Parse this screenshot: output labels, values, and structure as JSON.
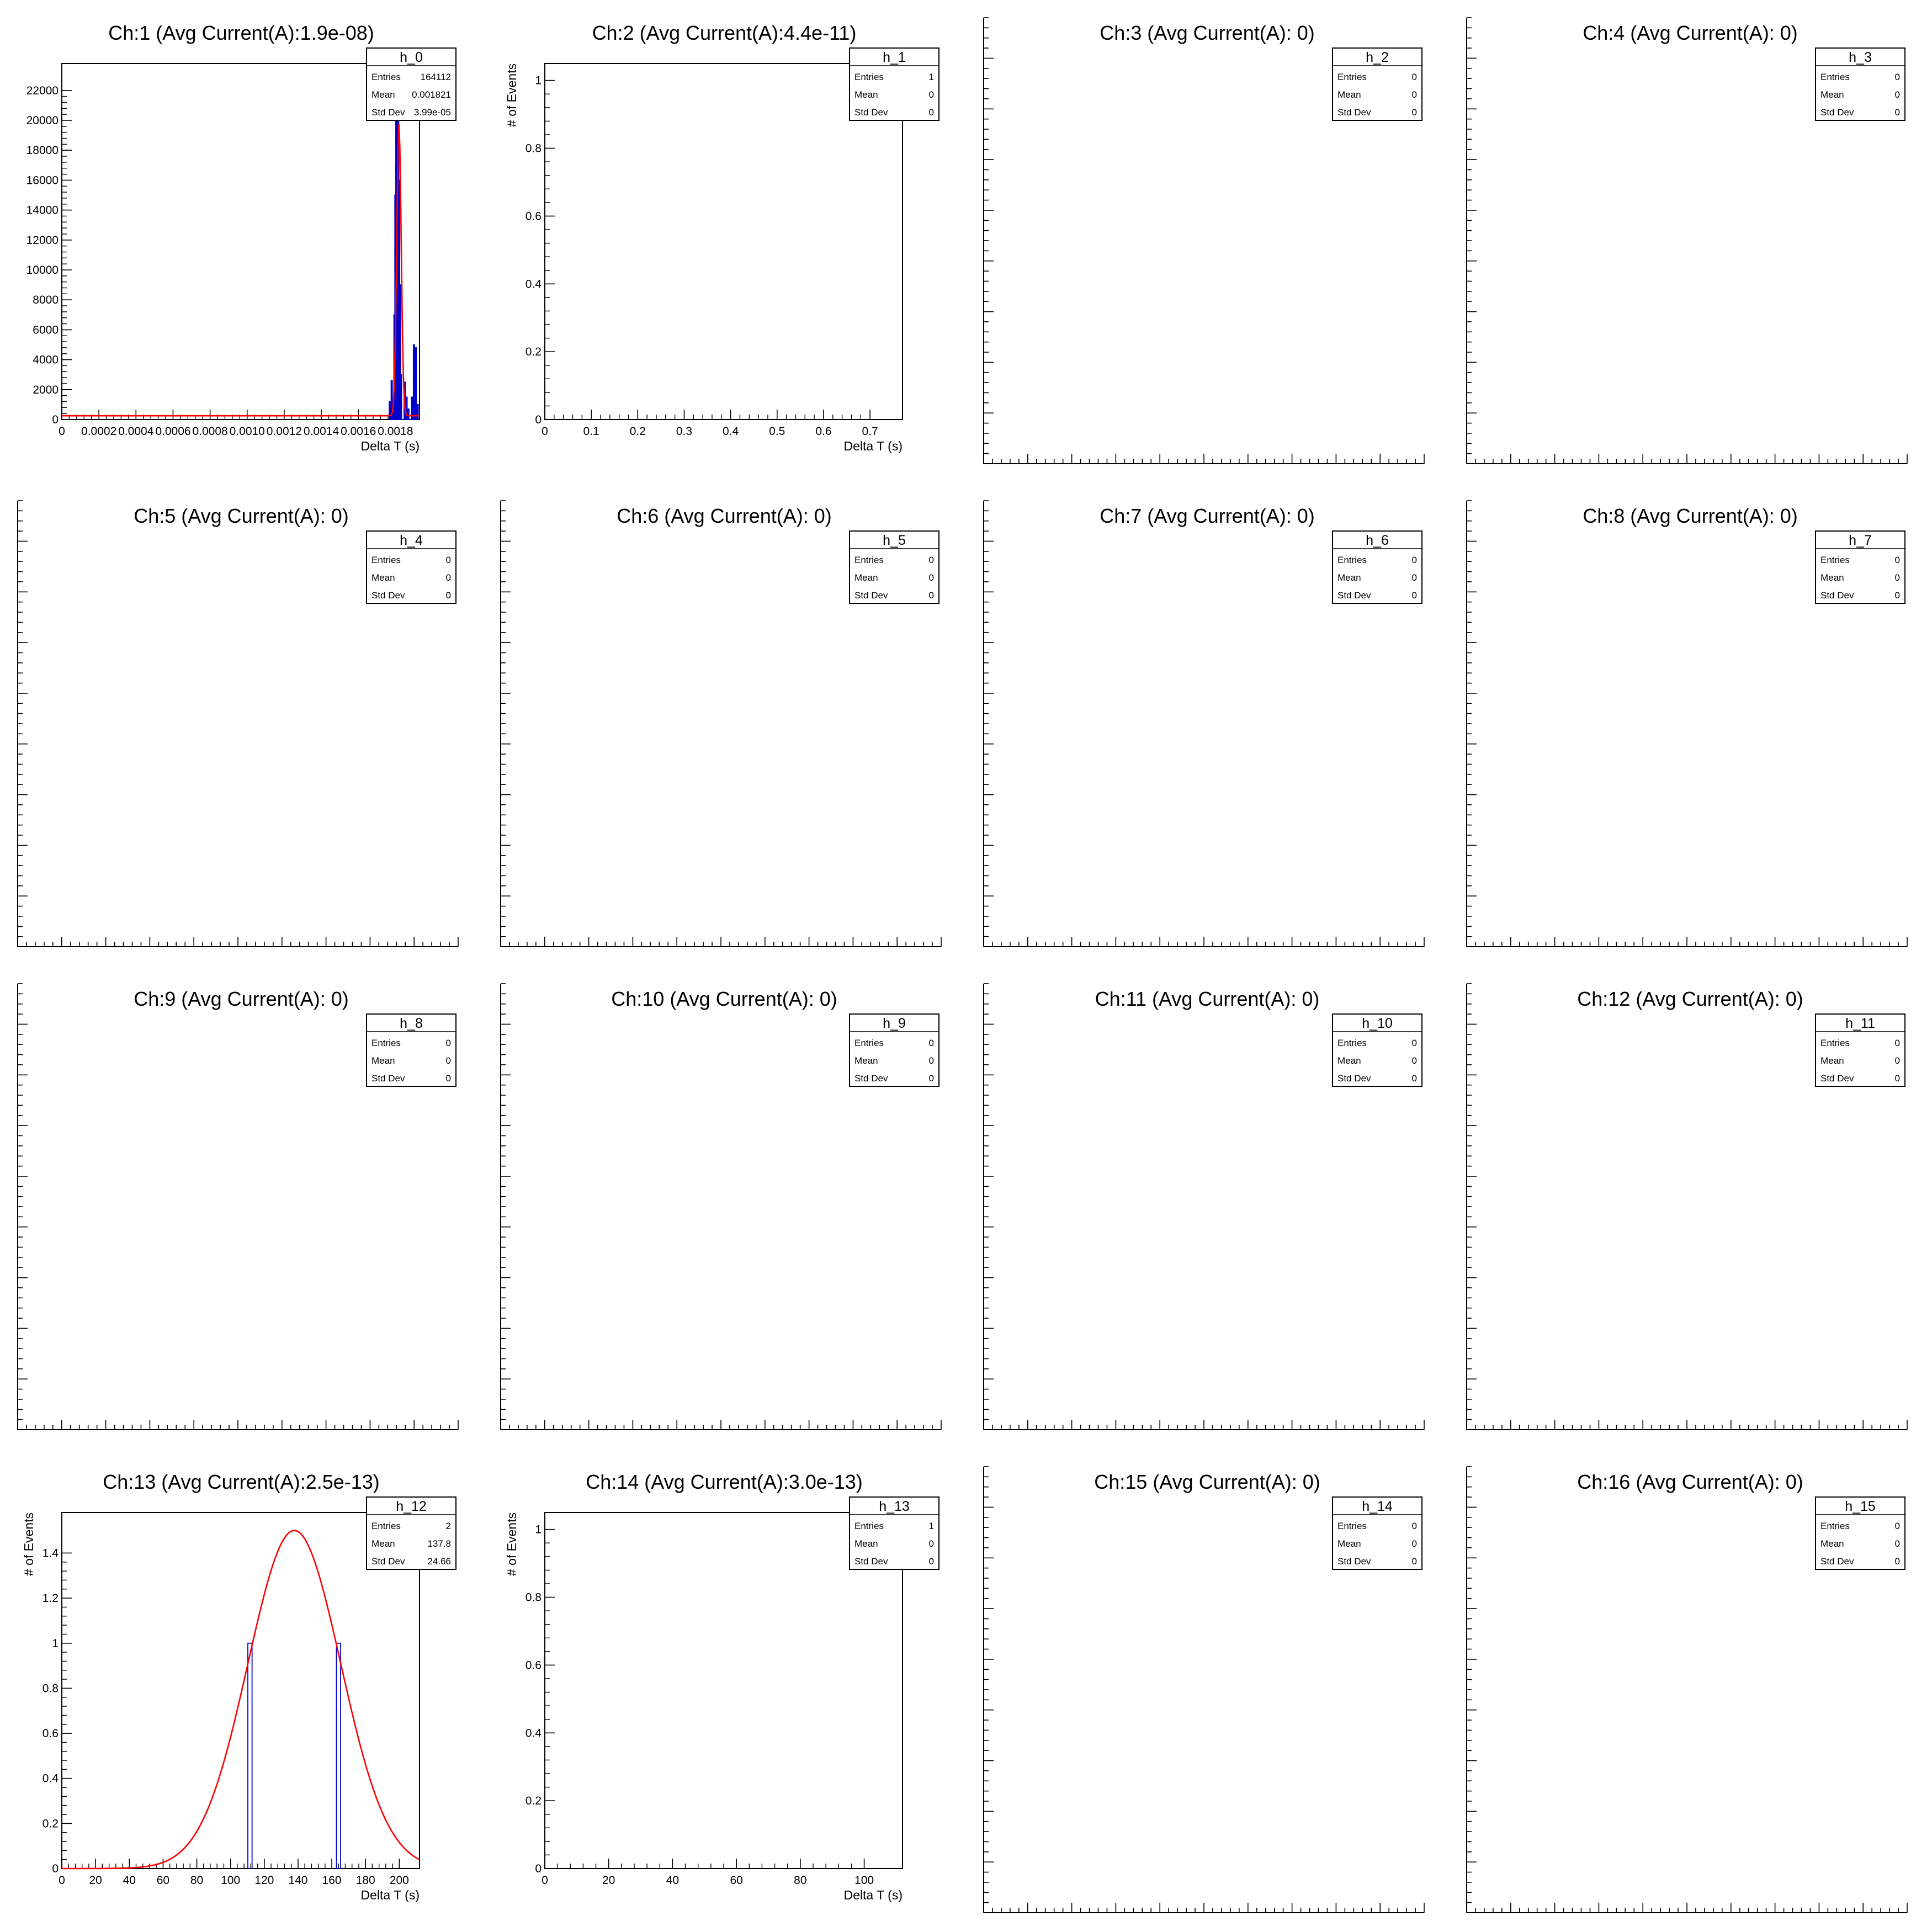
{
  "colors": {
    "histogram": "#0000cc",
    "fit": "#ff0000",
    "axis": "#000000",
    "frame": "#000000",
    "background": "#ffffff"
  },
  "stats_labels": {
    "entries": "Entries",
    "mean": "Mean",
    "stddev": "Std Dev"
  },
  "chart_data": [
    {
      "type": "bar",
      "title": "Ch:1 (Avg Current(A):1.9e-08)",
      "xlabel": "Delta T (s)",
      "ylabel": "",
      "xlim": [
        0,
        0.00193
      ],
      "ylim": [
        0,
        23800
      ],
      "xticks": [
        0,
        0.0002,
        0.0004,
        0.0006,
        0.0008,
        0.001,
        0.0012,
        0.0014,
        0.0016,
        0.0018
      ],
      "xtick_labels": [
        "0",
        "0.0002",
        "0.0004",
        "0.0006",
        "0.0008",
        "0.0010",
        "0.0012",
        "0.0014",
        "0.0016",
        "0.0018"
      ],
      "yticks": [
        0,
        2000,
        4000,
        6000,
        8000,
        10000,
        12000,
        14000,
        16000,
        18000,
        20000,
        22000
      ],
      "ytick_labels": [
        "0",
        "2000",
        "4000",
        "6000",
        "8000",
        "10000",
        "12000",
        "14000",
        "16000",
        "18000",
        "20000",
        "22000"
      ],
      "stats": {
        "name": "h_0",
        "entries": "164112",
        "mean": "0.001821",
        "stddev": "3.99e-05"
      },
      "histogram": {
        "x": [
          0.00177,
          0.00178,
          0.00179,
          0.001795,
          0.0018,
          0.001805,
          0.00181,
          0.001815,
          0.00182,
          0.001825,
          0.00183,
          0.00185,
          0.00186,
          0.00187,
          0.00189,
          0.0019,
          0.00191,
          0.00192
        ],
        "y": [
          1200,
          2600,
          500,
          7000,
          15000,
          20500,
          23500,
          22000,
          16000,
          9000,
          3000,
          2500,
          1500,
          700,
          1500,
          5000,
          4800,
          1000
        ]
      },
      "fit": {
        "type": "gaussian",
        "amplitude": 19500,
        "mean": 0.001819,
        "sigma": 1.2e-05,
        "baseline": 250
      }
    },
    {
      "type": "bar",
      "title": "Ch:2 (Avg Current(A):4.4e-11)",
      "xlabel": "Delta T (s)",
      "ylabel": "# of Events",
      "xlim": [
        0,
        0.77
      ],
      "ylim": [
        0,
        1.05
      ],
      "xticks": [
        0,
        0.1,
        0.2,
        0.3,
        0.4,
        0.5,
        0.6,
        0.7
      ],
      "xtick_labels": [
        "0",
        "0.1",
        "0.2",
        "0.3",
        "0.4",
        "0.5",
        "0.6",
        "0.7"
      ],
      "yticks": [
        0,
        0.2,
        0.4,
        0.6,
        0.8,
        1
      ],
      "ytick_labels": [
        "0",
        "0.2",
        "0.4",
        "0.6",
        "0.8",
        "1"
      ],
      "stats": {
        "name": "h_1",
        "entries": "1",
        "mean": "0",
        "stddev": "0"
      }
    },
    {
      "type": "bar",
      "title": "Ch:3 (Avg Current(A): 0)",
      "empty": true,
      "stats": {
        "name": "h_2",
        "entries": "0",
        "mean": "0",
        "stddev": "0"
      }
    },
    {
      "type": "bar",
      "title": "Ch:4 (Avg Current(A): 0)",
      "empty": true,
      "stats": {
        "name": "h_3",
        "entries": "0",
        "mean": "0",
        "stddev": "0"
      }
    },
    {
      "type": "bar",
      "title": "Ch:5 (Avg Current(A): 0)",
      "empty": true,
      "stats": {
        "name": "h_4",
        "entries": "0",
        "mean": "0",
        "stddev": "0"
      }
    },
    {
      "type": "bar",
      "title": "Ch:6 (Avg Current(A): 0)",
      "empty": true,
      "stats": {
        "name": "h_5",
        "entries": "0",
        "mean": "0",
        "stddev": "0"
      }
    },
    {
      "type": "bar",
      "title": "Ch:7 (Avg Current(A): 0)",
      "empty": true,
      "stats": {
        "name": "h_6",
        "entries": "0",
        "mean": "0",
        "stddev": "0"
      }
    },
    {
      "type": "bar",
      "title": "Ch:8 (Avg Current(A): 0)",
      "empty": true,
      "stats": {
        "name": "h_7",
        "entries": "0",
        "mean": "0",
        "stddev": "0"
      }
    },
    {
      "type": "bar",
      "title": "Ch:9 (Avg Current(A): 0)",
      "empty": true,
      "stats": {
        "name": "h_8",
        "entries": "0",
        "mean": "0",
        "stddev": "0"
      }
    },
    {
      "type": "bar",
      "title": "Ch:10 (Avg Current(A): 0)",
      "empty": true,
      "stats": {
        "name": "h_9",
        "entries": "0",
        "mean": "0",
        "stddev": "0"
      }
    },
    {
      "type": "bar",
      "title": "Ch:11 (Avg Current(A): 0)",
      "empty": true,
      "stats": {
        "name": "h_10",
        "entries": "0",
        "mean": "0",
        "stddev": "0"
      }
    },
    {
      "type": "bar",
      "title": "Ch:12 (Avg Current(A): 0)",
      "empty": true,
      "stats": {
        "name": "h_11",
        "entries": "0",
        "mean": "0",
        "stddev": "0"
      }
    },
    {
      "type": "bar",
      "title": "Ch:13 (Avg Current(A):2.5e-13)",
      "xlabel": "Delta T (s)",
      "ylabel": "# of Events",
      "xlim": [
        0,
        212
      ],
      "ylim": [
        0,
        1.58
      ],
      "xticks": [
        0,
        20,
        40,
        60,
        80,
        100,
        120,
        140,
        160,
        180,
        200
      ],
      "xtick_labels": [
        "0",
        "20",
        "40",
        "60",
        "80",
        "100",
        "120",
        "140",
        "160",
        "180",
        "200"
      ],
      "yticks": [
        0,
        0.2,
        0.4,
        0.6,
        0.8,
        1,
        1.2,
        1.4
      ],
      "ytick_labels": [
        "0",
        "0.2",
        "0.4",
        "0.6",
        "0.8",
        "1",
        "1.2",
        "1.4"
      ],
      "stats": {
        "name": "h_12",
        "entries": "2",
        "mean": "137.8",
        "stddev": "24.66"
      },
      "histogram": {
        "x": [
          111.5,
          164
        ],
        "y": [
          1,
          1
        ],
        "binwidth": 2.5
      },
      "fit": {
        "type": "gaussian",
        "amplitude": 1.5,
        "mean": 137.8,
        "sigma": 27.5,
        "baseline": 0
      }
    },
    {
      "type": "bar",
      "title": "Ch:14 (Avg Current(A):3.0e-13)",
      "xlabel": "Delta T (s)",
      "ylabel": "# of Events",
      "xlim": [
        0,
        112
      ],
      "ylim": [
        0,
        1.05
      ],
      "xticks": [
        0,
        20,
        40,
        60,
        80,
        100
      ],
      "xtick_labels": [
        "0",
        "20",
        "40",
        "60",
        "80",
        "100"
      ],
      "yticks": [
        0,
        0.2,
        0.4,
        0.6,
        0.8,
        1
      ],
      "ytick_labels": [
        "0",
        "0.2",
        "0.4",
        "0.6",
        "0.8",
        "1"
      ],
      "stats": {
        "name": "h_13",
        "entries": "1",
        "mean": "0",
        "stddev": "0"
      }
    },
    {
      "type": "bar",
      "title": "Ch:15 (Avg Current(A): 0)",
      "empty": true,
      "stats": {
        "name": "h_14",
        "entries": "0",
        "mean": "0",
        "stddev": "0"
      }
    },
    {
      "type": "bar",
      "title": "Ch:16 (Avg Current(A): 0)",
      "empty": true,
      "stats": {
        "name": "h_15",
        "entries": "0",
        "mean": "0",
        "stddev": "0"
      }
    }
  ]
}
